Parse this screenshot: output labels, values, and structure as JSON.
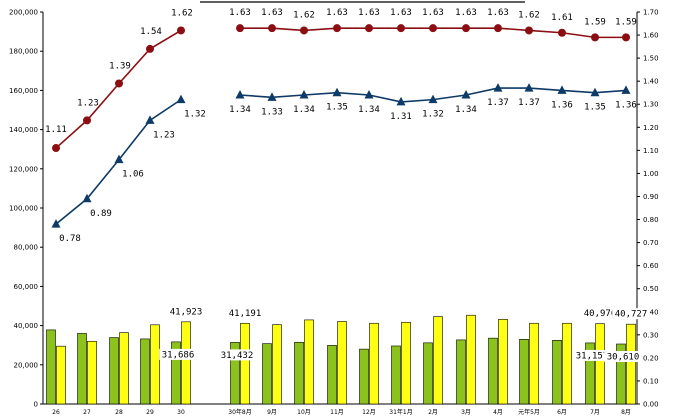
{
  "chart_data": {
    "type": "bar+line",
    "categories": [
      "26",
      "27",
      "28",
      "29",
      "30",
      "30年8月",
      "9月",
      "10月",
      "11月",
      "12月",
      "31年1月",
      "2月",
      "3月",
      "4月",
      "元年5月",
      "6月",
      "7月",
      "8月"
    ],
    "left_axis": {
      "ylim": [
        0,
        200000
      ],
      "ticks": [
        "0",
        "20,000",
        "40,000",
        "60,000",
        "80,000",
        "100,000",
        "120,000",
        "140,000",
        "160,000",
        "180,000",
        "200,000"
      ]
    },
    "right_axis": {
      "ylim": [
        0,
        1.7
      ],
      "ticks": [
        "0.00",
        "0.10",
        "0.20",
        "0.30",
        "0.40",
        "0.50",
        "0.60",
        "0.70",
        "0.80",
        "0.90",
        "1.00",
        "1.10",
        "1.20",
        "1.30",
        "1.40",
        "1.50",
        "1.60",
        "1.70"
      ]
    },
    "series": [
      {
        "axis": "left",
        "kind": "bar",
        "color": "#8cc21c",
        "values": [
          37800,
          36000,
          33900,
          33200,
          31686,
          31432,
          30800,
          31500,
          29900,
          28000,
          29600,
          31200,
          32700,
          33600,
          33000,
          32500,
          31157,
          30610
        ]
      },
      {
        "axis": "left",
        "kind": "bar",
        "color": "#ffff14",
        "values": [
          29500,
          32000,
          36400,
          40400,
          41923,
          41191,
          40500,
          42900,
          42100,
          41200,
          41700,
          44600,
          45300,
          43200,
          41200,
          41200,
          40976,
          40727
        ]
      },
      {
        "axis": "right",
        "kind": "line",
        "marker": "circle",
        "color": "#8b0e12",
        "values": [
          1.11,
          1.23,
          1.39,
          1.54,
          1.62,
          1.63,
          1.63,
          1.62,
          1.63,
          1.63,
          1.63,
          1.63,
          1.63,
          1.63,
          1.62,
          1.61,
          1.59,
          1.59
        ]
      },
      {
        "axis": "right",
        "kind": "line",
        "marker": "triangle",
        "color": "#0d3a66",
        "values": [
          0.78,
          0.89,
          1.06,
          1.23,
          1.32,
          1.34,
          1.33,
          1.34,
          1.35,
          1.34,
          1.31,
          1.32,
          1.34,
          1.37,
          1.37,
          1.36,
          1.35,
          1.36
        ]
      }
    ],
    "line_labels": {
      "red": [
        "1.11",
        "1.23",
        "1.39",
        "1.54",
        "1.62",
        "1.63",
        "1.63",
        "1.62",
        "1.63",
        "1.63",
        "1.63",
        "1.63",
        "1.63",
        "1.63",
        "1.62",
        "1.61",
        "1.59",
        "1.59"
      ],
      "blue": [
        "0.78",
        "0.89",
        "1.06",
        "1.23",
        "1.32",
        "1.34",
        "1.33",
        "1.34",
        "1.35",
        "1.34",
        "1.31",
        "1.32",
        "1.34",
        "1.37",
        "1.37",
        "1.36",
        "1.35",
        "1.36"
      ]
    },
    "bar_labels": [
      {
        "index": 4,
        "green": "31,686",
        "yellow": "41,923"
      },
      {
        "index": 5,
        "green": "31,432",
        "yellow": "41,191"
      },
      {
        "index": 16,
        "green": "31,157",
        "yellow": "40,976"
      },
      {
        "index": 17,
        "green": "30,610",
        "yellow": "40,727"
      }
    ],
    "grid": false,
    "legend": "none"
  }
}
